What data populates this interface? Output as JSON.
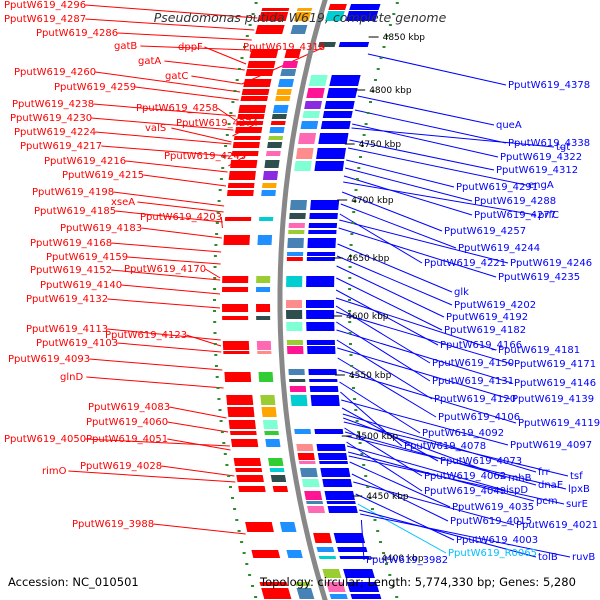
{
  "title": "Pseudomonas putida W619, complete genome",
  "accession": "Accession: NC_010501",
  "topology": "Topology: circular; Length: 5,774,330 bp; Genes: 5,280",
  "colors": {
    "forward_strand": "#ff0000",
    "reverse_strand": "#0000ff",
    "rna": "#00bfff",
    "backbone": "#888888",
    "tick": "#2e8b2e"
  },
  "scale_ticks": [
    "4850 kbp",
    "4800 kbp",
    "4750 kbp",
    "4700 kbp",
    "4650 kbp",
    "4600 kbp",
    "4550 kbp",
    "4500 kbp",
    "4450 kbp",
    "4400 kbp"
  ],
  "left_labels": [
    "PputW619_4296",
    "PputW619_4287",
    "PputW619_4286",
    "gatB",
    "dppF",
    "PputW619_4318",
    "gatA",
    "gatC",
    "PputW619_4260",
    "PputW619_4259",
    "PputW619_4238",
    "PputW619_4258",
    "PputW619_4230",
    "PputW619_4274",
    "PputW619_4224",
    "valS",
    "PputW619_4217",
    "PputW619_4243",
    "PputW619_4216",
    "PputW619_4215",
    "PputW619_4198",
    "xseA",
    "PputW619_4185",
    "PputW619_4203",
    "PputW619_4183",
    "PputW619_4168",
    "PputW619_4159",
    "PputW619_4170",
    "PputW619_4152",
    "PputW619_4140",
    "PputW619_4132",
    "PputW619_4113",
    "PputW619_4123",
    "PputW619_4103",
    "PputW619_4093",
    "glnD",
    "PputW619_4083",
    "PputW619_4060",
    "PputW619_4050",
    "PputW619_4051",
    "rimO",
    "PputW619_4028",
    "PputW619_3988"
  ],
  "right_labels": [
    "PputW619_4378",
    "queA",
    "PputW619_4338",
    "PputW619_4322",
    "tgt",
    "PputW619_4312",
    "engA",
    "PputW619_4291",
    "PputW619_4288",
    "PputW619_4277",
    "prfC",
    "PputW619_4257",
    "PputW619_4244",
    "PputW619_4221",
    "PputW619_4246",
    "PputW619_4235",
    "glk",
    "PputW619_4202",
    "PputW619_4192",
    "PputW619_4182",
    "PputW619_4166",
    "PputW619_4181",
    "PputW619_4150",
    "PputW619_4171",
    "PputW619_4131",
    "PputW619_4146",
    "PputW619_4120",
    "PputW619_4139",
    "PputW619_4106",
    "PputW619_4119",
    "PputW619_4092",
    "PputW619_4078",
    "PputW619_4097",
    "PputW619_4073",
    "frr",
    "rnhB",
    "tsf",
    "PputW619_4062",
    "dnaE",
    "lpxB",
    "PputW619_4049",
    "ispD",
    "pcm",
    "surE",
    "PputW619_4035",
    "PputW619_4015",
    "PputW619_4021",
    "PputW619_4003",
    "PputW619_R0065",
    "tolB",
    "ruvB",
    "PputW619_3982"
  ]
}
